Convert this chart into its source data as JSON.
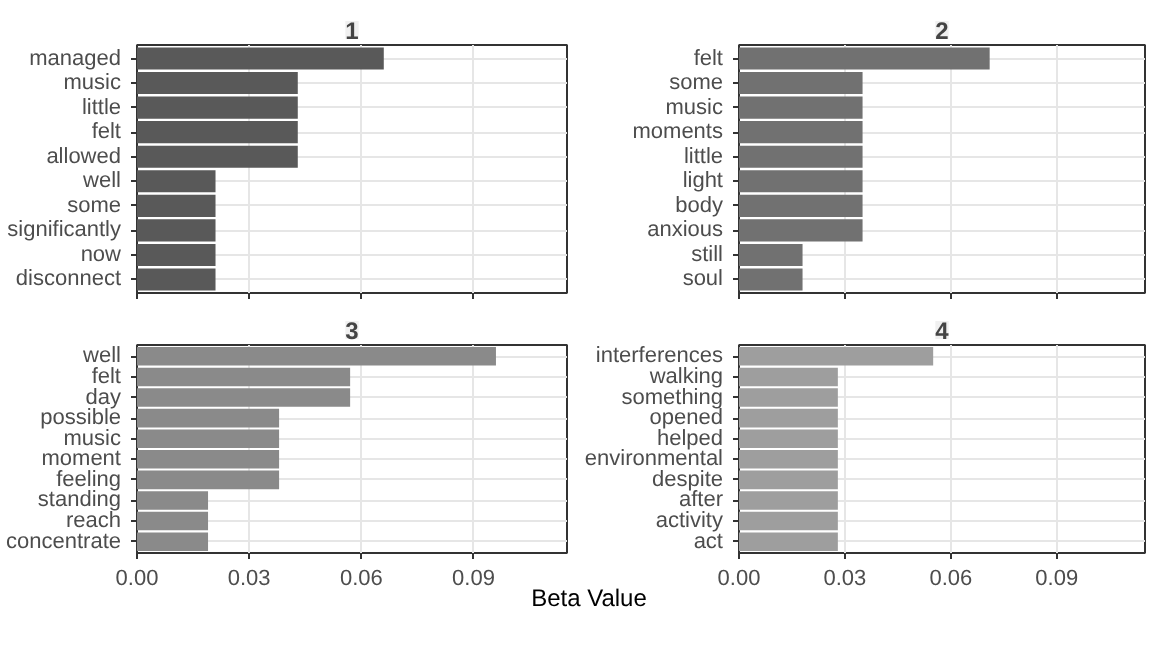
{
  "chart_data": [
    {
      "type": "bar",
      "orientation": "horizontal",
      "title": "1",
      "categories": [
        "managed",
        "music",
        "little",
        "felt",
        "allowed",
        "well",
        "some",
        "significantly",
        "now",
        "disconnect"
      ],
      "values": [
        0.066,
        0.043,
        0.043,
        0.043,
        0.043,
        0.021,
        0.021,
        0.021,
        0.021,
        0.021
      ],
      "color": "#595959",
      "xlim": [
        0,
        0.115
      ],
      "xticks": [
        0,
        0.03,
        0.06,
        0.09
      ],
      "grid": true,
      "tick_labels": "y"
    },
    {
      "type": "bar",
      "orientation": "horizontal",
      "title": "2",
      "categories": [
        "felt",
        "some",
        "music",
        "moments",
        "little",
        "light",
        "body",
        "anxious",
        "still",
        "soul"
      ],
      "values": [
        0.071,
        0.035,
        0.035,
        0.035,
        0.035,
        0.035,
        0.035,
        0.035,
        0.018,
        0.018
      ],
      "color": "#717171",
      "xlim": [
        0,
        0.115
      ],
      "xticks": [
        0,
        0.03,
        0.06,
        0.09
      ],
      "grid": true,
      "tick_labels": "y"
    },
    {
      "type": "bar",
      "orientation": "horizontal",
      "title": "3",
      "xlabel": "Beta Value",
      "categories": [
        "well",
        "felt",
        "day",
        "possible",
        "music",
        "moment",
        "feeling",
        "standing",
        "reach",
        "concentrate"
      ],
      "values": [
        0.096,
        0.057,
        0.057,
        0.038,
        0.038,
        0.038,
        0.038,
        0.019,
        0.019,
        0.019
      ],
      "color": "#8a8a8a",
      "xlim": [
        0,
        0.115
      ],
      "xticks": [
        {
          "value": 0,
          "label": "0.00"
        },
        {
          "value": 0.03,
          "label": "0.03"
        },
        {
          "value": 0.06,
          "label": "0.06"
        },
        {
          "value": 0.09,
          "label": "0.09"
        }
      ],
      "grid": true
    },
    {
      "type": "bar",
      "orientation": "horizontal",
      "title": "4",
      "categories": [
        "interferences",
        "walking",
        "something",
        "opened",
        "helped",
        "environmental",
        "despite",
        "after",
        "activity",
        "act"
      ],
      "values": [
        0.055,
        0.028,
        0.028,
        0.028,
        0.028,
        0.028,
        0.028,
        0.028,
        0.028,
        0.028
      ],
      "color": "#9e9e9e",
      "xlim": [
        0,
        0.115
      ],
      "xticks": [
        {
          "value": 0,
          "label": "0.00"
        },
        {
          "value": 0.03,
          "label": "0.03"
        },
        {
          "value": 0.06,
          "label": "0.06"
        },
        {
          "value": 0.09,
          "label": "0.09"
        }
      ],
      "grid": true
    }
  ]
}
